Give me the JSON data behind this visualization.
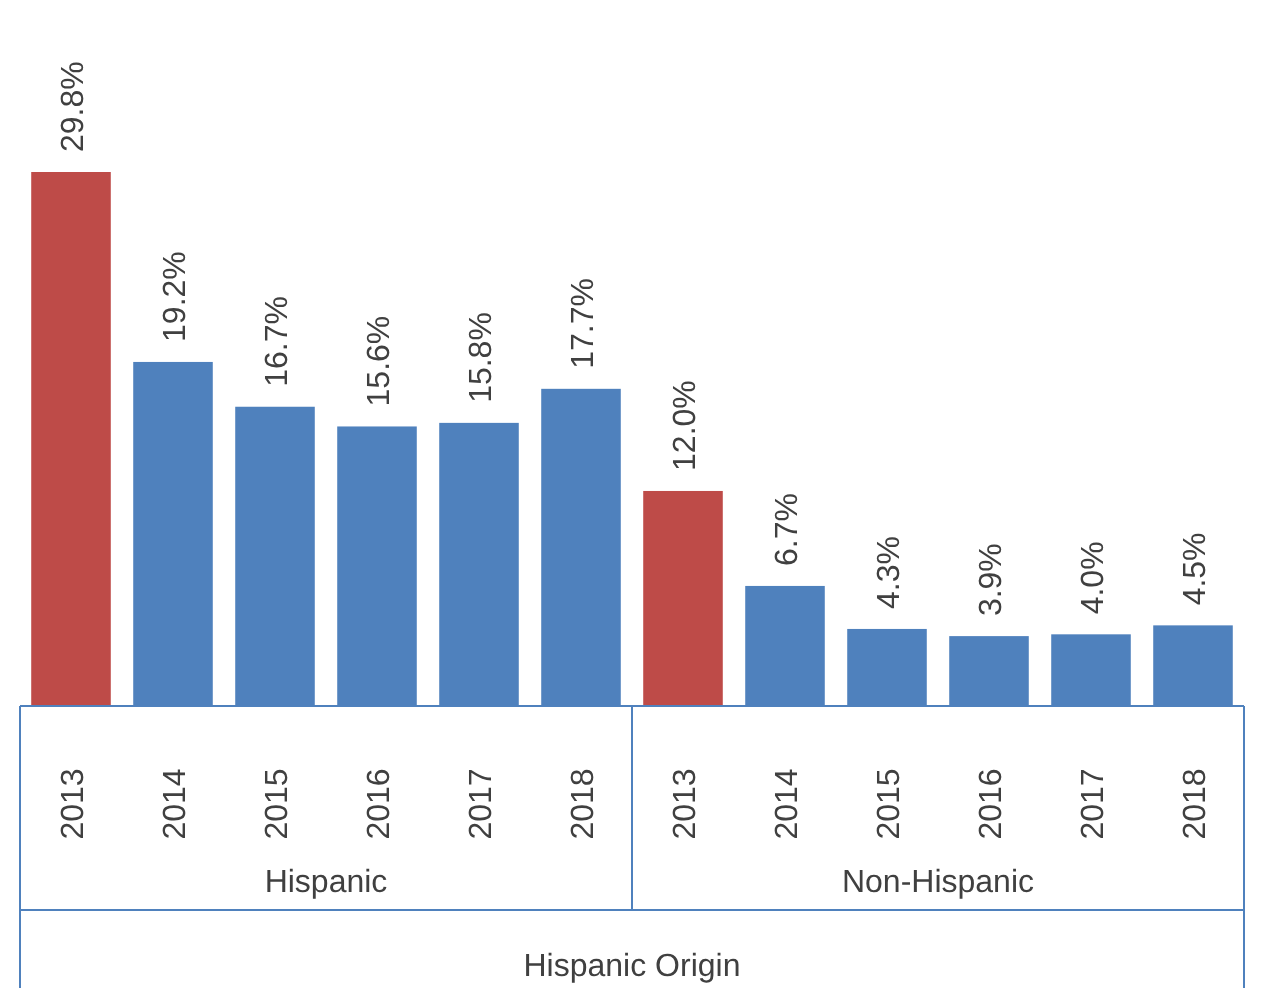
{
  "chart_data": {
    "type": "bar",
    "xlabel": "Hispanic Origin",
    "categories": [
      "2013",
      "2014",
      "2015",
      "2016",
      "2017",
      "2018",
      "2013",
      "2014",
      "2015",
      "2016",
      "2017",
      "2018"
    ],
    "values": [
      29.8,
      19.2,
      16.7,
      15.6,
      15.8,
      17.7,
      12.0,
      6.7,
      4.3,
      3.9,
      4.0,
      4.5
    ],
    "colors": [
      "#be4b48",
      "#4f81bd",
      "#4f81bd",
      "#4f81bd",
      "#4f81bd",
      "#4f81bd",
      "#be4b48",
      "#4f81bd",
      "#4f81bd",
      "#4f81bd",
      "#4f81bd",
      "#4f81bd"
    ],
    "value_labels": [
      "29.8%",
      "19.2%",
      "16.7%",
      "15.6%",
      "15.8%",
      "17.7%",
      "12.0%",
      "6.7%",
      "4.3%",
      "3.9%",
      "4.0%",
      "4.5%"
    ],
    "annotations": [
      "Hispanic",
      "Non-Hispanic"
    ]
  }
}
